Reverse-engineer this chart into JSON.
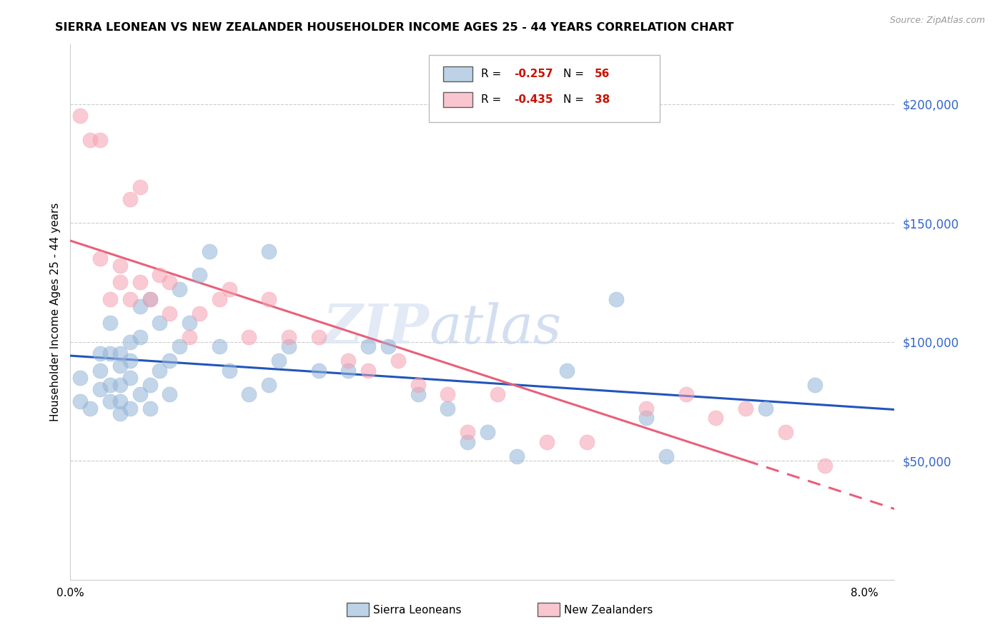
{
  "title": "SIERRA LEONEAN VS NEW ZEALANDER HOUSEHOLDER INCOME AGES 25 - 44 YEARS CORRELATION CHART",
  "source": "Source: ZipAtlas.com",
  "ylabel": "Householder Income Ages 25 - 44 years",
  "xlim": [
    0.0,
    0.083
  ],
  "ylim": [
    0,
    225000
  ],
  "yticks": [
    50000,
    100000,
    150000,
    200000
  ],
  "ytick_labels": [
    "$50,000",
    "$100,000",
    "$150,000",
    "$200,000"
  ],
  "xtick_positions": [
    0.0,
    0.01,
    0.02,
    0.03,
    0.04,
    0.05,
    0.06,
    0.07,
    0.08
  ],
  "xtick_labels": [
    "0.0%",
    "",
    "",
    "",
    "",
    "",
    "",
    "",
    "8.0%"
  ],
  "blue_color": "#92B4D8",
  "pink_color": "#F5A0B0",
  "line_blue": "#2255BB",
  "line_pink": "#E8607A",
  "legend_R_blue": "-0.257",
  "legend_N_blue": "56",
  "legend_R_pink": "-0.435",
  "legend_N_pink": "38",
  "sl_x": [
    0.001,
    0.001,
    0.002,
    0.003,
    0.003,
    0.003,
    0.004,
    0.004,
    0.004,
    0.004,
    0.005,
    0.005,
    0.005,
    0.005,
    0.005,
    0.006,
    0.006,
    0.006,
    0.006,
    0.007,
    0.007,
    0.007,
    0.008,
    0.008,
    0.008,
    0.009,
    0.009,
    0.01,
    0.01,
    0.011,
    0.011,
    0.012,
    0.013,
    0.014,
    0.015,
    0.016,
    0.018,
    0.02,
    0.02,
    0.021,
    0.022,
    0.025,
    0.028,
    0.03,
    0.032,
    0.035,
    0.038,
    0.04,
    0.042,
    0.045,
    0.05,
    0.055,
    0.058,
    0.06,
    0.07,
    0.075
  ],
  "sl_y": [
    75000,
    85000,
    72000,
    80000,
    88000,
    95000,
    75000,
    82000,
    95000,
    108000,
    70000,
    75000,
    82000,
    90000,
    95000,
    72000,
    85000,
    92000,
    100000,
    78000,
    102000,
    115000,
    72000,
    82000,
    118000,
    88000,
    108000,
    78000,
    92000,
    98000,
    122000,
    108000,
    128000,
    138000,
    98000,
    88000,
    78000,
    82000,
    138000,
    92000,
    98000,
    88000,
    88000,
    98000,
    98000,
    78000,
    72000,
    58000,
    62000,
    52000,
    88000,
    118000,
    68000,
    52000,
    72000,
    82000
  ],
  "nz_x": [
    0.001,
    0.002,
    0.003,
    0.003,
    0.004,
    0.005,
    0.005,
    0.006,
    0.006,
    0.007,
    0.007,
    0.008,
    0.009,
    0.01,
    0.01,
    0.012,
    0.013,
    0.015,
    0.016,
    0.018,
    0.02,
    0.022,
    0.025,
    0.028,
    0.03,
    0.033,
    0.035,
    0.038,
    0.04,
    0.043,
    0.048,
    0.052,
    0.058,
    0.062,
    0.065,
    0.068,
    0.072,
    0.076
  ],
  "nz_y": [
    195000,
    185000,
    185000,
    135000,
    118000,
    132000,
    125000,
    160000,
    118000,
    125000,
    165000,
    118000,
    128000,
    112000,
    125000,
    102000,
    112000,
    118000,
    122000,
    102000,
    118000,
    102000,
    102000,
    92000,
    88000,
    92000,
    82000,
    78000,
    62000,
    78000,
    58000,
    58000,
    72000,
    78000,
    68000,
    72000,
    62000,
    48000
  ]
}
